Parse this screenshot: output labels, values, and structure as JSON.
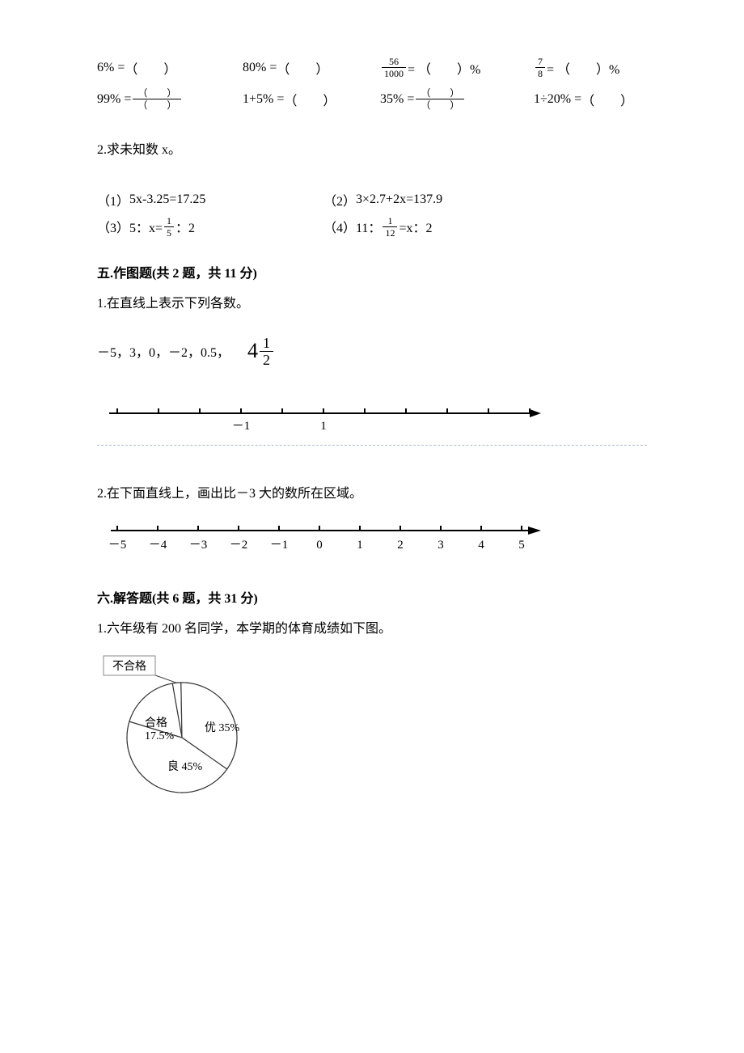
{
  "blanks": {
    "row1": {
      "c1_lhs": "6% =",
      "c1_rhs": "（　　）",
      "c2_lhs": "80% =",
      "c2_rhs": "（　　）",
      "c3_frac_num": "56",
      "c3_frac_den": "1000",
      "c3_eq": " = （　　）%",
      "c4_frac_num": "7",
      "c4_frac_den": "8",
      "c4_eq": " = （　　）%"
    },
    "row2": {
      "c1_lhs": "99% =",
      "c1_frac_num": "（　　）",
      "c1_frac_den": "（　　）",
      "c2_lhs": "1+5% =",
      "c2_rhs": "（　　）",
      "c3_lhs": "35% =",
      "c3_frac_num": "（　　）",
      "c3_frac_den": "（　　）",
      "c4_lhs": "1÷20% =",
      "c4_rhs": "（　　）"
    }
  },
  "q2": {
    "title": "2.求未知数 x。",
    "eq1_label": "（1）",
    "eq1": "5x-3.25=17.25",
    "eq2_label": "（2）",
    "eq2": "3×2.7+2x=137.9",
    "eq3_label": "（3）",
    "eq3_pre": "5：x= ",
    "eq3_frac_num": "1",
    "eq3_frac_den": "5",
    "eq3_post": " ：2",
    "eq4_label": "（4）",
    "eq4_pre": "11： ",
    "eq4_frac_num": "1",
    "eq4_frac_den": "12",
    "eq4_post": " =x：2"
  },
  "sec5": {
    "title": "五.作图题(共 2 题，共 11 分)",
    "q1": "1.在直线上表示下列各数。",
    "numbers_text": "－5，3，0，－2，0.5，",
    "mixed_whole": "4",
    "mixed_num": "1",
    "mixed_den": "2",
    "nl1": {
      "min": -4,
      "max": 6,
      "label_neg1": "－1",
      "label_pos1": "1",
      "tick_color": "#000000",
      "line_color": "#000000"
    },
    "q2": "2.在下面直线上，画出比－3 大的数所在区域。",
    "nl2": {
      "ticks": [
        -5,
        -4,
        -3,
        -2,
        -1,
        0,
        1,
        2,
        3,
        4,
        5
      ],
      "labels": [
        "－5",
        "－4",
        "－3",
        "－2",
        "－1",
        "0",
        "1",
        "2",
        "3",
        "4",
        "5"
      ],
      "line_color": "#000000"
    }
  },
  "sec6": {
    "title": "六.解答题(共 6 题，共 31 分)",
    "q1": "1.六年级有 200 名同学，本学期的体育成绩如下图。",
    "pie": {
      "label_fail": "不合格",
      "label_pass": "合格",
      "pct_pass": "17.5%",
      "label_excellent": "优 35%",
      "label_good": "良 45%",
      "stroke": "#3a3a3a",
      "fill": "#ffffff",
      "box_border": "#888888"
    }
  },
  "colors": {
    "text": "#000000",
    "dotted_rule": "#a8b8c8"
  }
}
